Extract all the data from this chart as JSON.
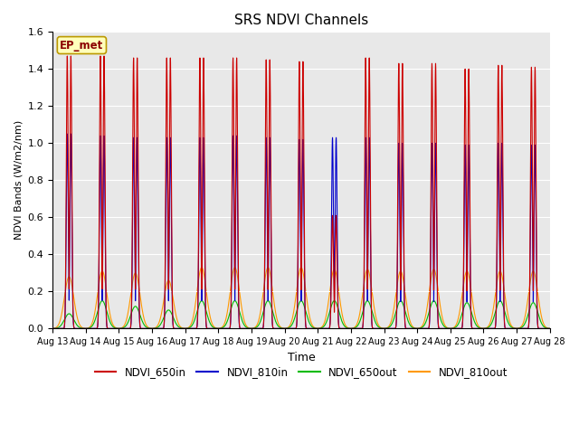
{
  "title": "SRS NDVI Channels",
  "xlabel": "Time",
  "ylabel": "NDVI Bands (W/m2/nm)",
  "annotation": "EP_met",
  "ylim": [
    0,
    1.6
  ],
  "yticks": [
    0.0,
    0.2,
    0.4,
    0.6,
    0.8,
    1.0,
    1.2,
    1.4,
    1.6
  ],
  "xtick_labels": [
    "Aug 13",
    "Aug 14",
    "Aug 15",
    "Aug 16",
    "Aug 17",
    "Aug 18",
    "Aug 19",
    "Aug 20",
    "Aug 21",
    "Aug 22",
    "Aug 23",
    "Aug 24",
    "Aug 25",
    "Aug 26",
    "Aug 27",
    "Aug 28"
  ],
  "colors": {
    "NDVI_650in": "#cc0000",
    "NDVI_810in": "#0000cc",
    "NDVI_650out": "#00bb00",
    "NDVI_810out": "#ff9900"
  },
  "peak_650in": [
    1.47,
    1.47,
    1.46,
    1.46,
    1.46,
    1.46,
    1.45,
    1.44,
    0.61,
    1.46,
    1.43,
    1.43,
    1.4,
    1.42,
    1.41
  ],
  "peak_810in": [
    1.05,
    1.04,
    1.03,
    1.03,
    1.03,
    1.04,
    1.03,
    1.02,
    1.03,
    1.03,
    1.0,
    1.0,
    0.99,
    1.0,
    0.99
  ],
  "peak_650out": [
    0.08,
    0.15,
    0.12,
    0.1,
    0.15,
    0.15,
    0.15,
    0.15,
    0.15,
    0.15,
    0.15,
    0.15,
    0.14,
    0.15,
    0.14
  ],
  "peak_810out": [
    0.28,
    0.31,
    0.3,
    0.26,
    0.33,
    0.33,
    0.33,
    0.33,
    0.32,
    0.32,
    0.31,
    0.32,
    0.31,
    0.31,
    0.31
  ],
  "fig_width": 6.4,
  "fig_height": 4.8,
  "dpi": 100
}
